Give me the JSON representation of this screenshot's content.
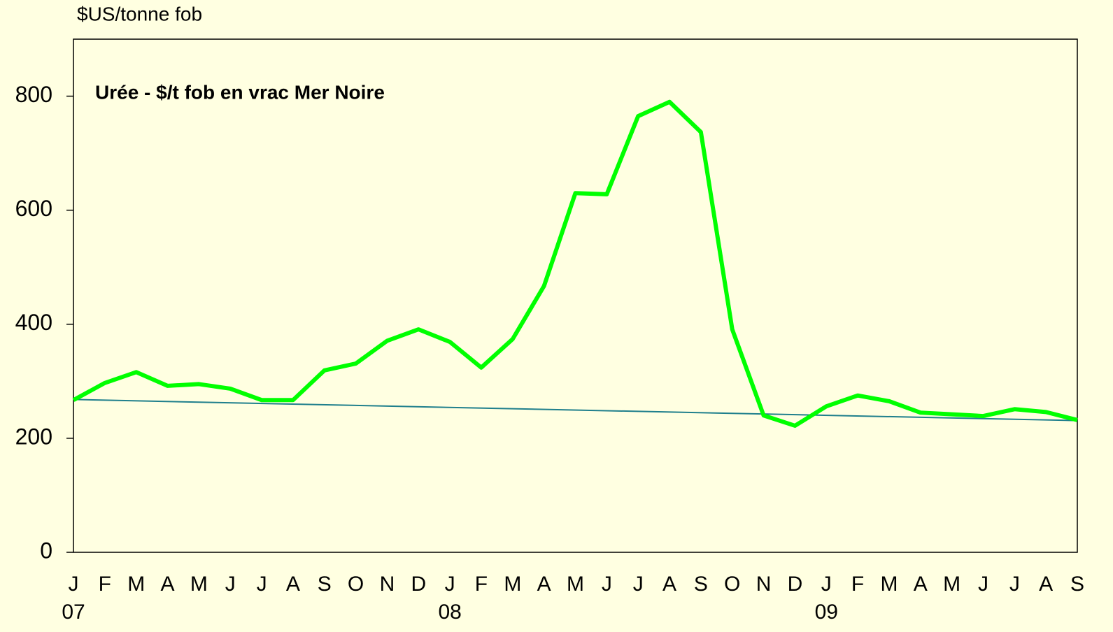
{
  "chart_data": {
    "type": "line",
    "y_axis_label": "$US/tonne fob",
    "categories": [
      "J",
      "F",
      "M",
      "A",
      "M",
      "J",
      "J",
      "A",
      "S",
      "O",
      "N",
      "D",
      "J",
      "F",
      "M",
      "A",
      "M",
      "J",
      "J",
      "A",
      "S",
      "O",
      "N",
      "D",
      "J",
      "F",
      "M",
      "A",
      "M",
      "J",
      "J",
      "A",
      "S"
    ],
    "year_labels": [
      "07",
      null,
      null,
      null,
      null,
      null,
      null,
      null,
      null,
      null,
      null,
      null,
      "08",
      null,
      null,
      null,
      null,
      null,
      null,
      null,
      null,
      null,
      null,
      null,
      "09",
      null,
      null,
      null,
      null,
      null,
      null,
      null,
      null
    ],
    "series": [
      {
        "name": "Urée - $/t fob en vrac Mer Noire",
        "color": "#00ff00",
        "values": [
          267,
          297,
          316,
          292,
          295,
          287,
          267,
          267,
          319,
          331,
          371,
          391,
          369,
          324,
          374,
          467,
          630,
          628,
          765,
          790,
          737,
          391,
          240,
          222,
          256,
          275,
          265,
          245,
          242,
          239,
          251,
          246,
          232
        ]
      }
    ],
    "trend": {
      "color": "#1f7f8c",
      "values": [
        268,
        231
      ]
    },
    "ylim": [
      0,
      900
    ],
    "yticks": [
      0,
      200,
      400,
      600,
      800
    ],
    "grid": false
  }
}
